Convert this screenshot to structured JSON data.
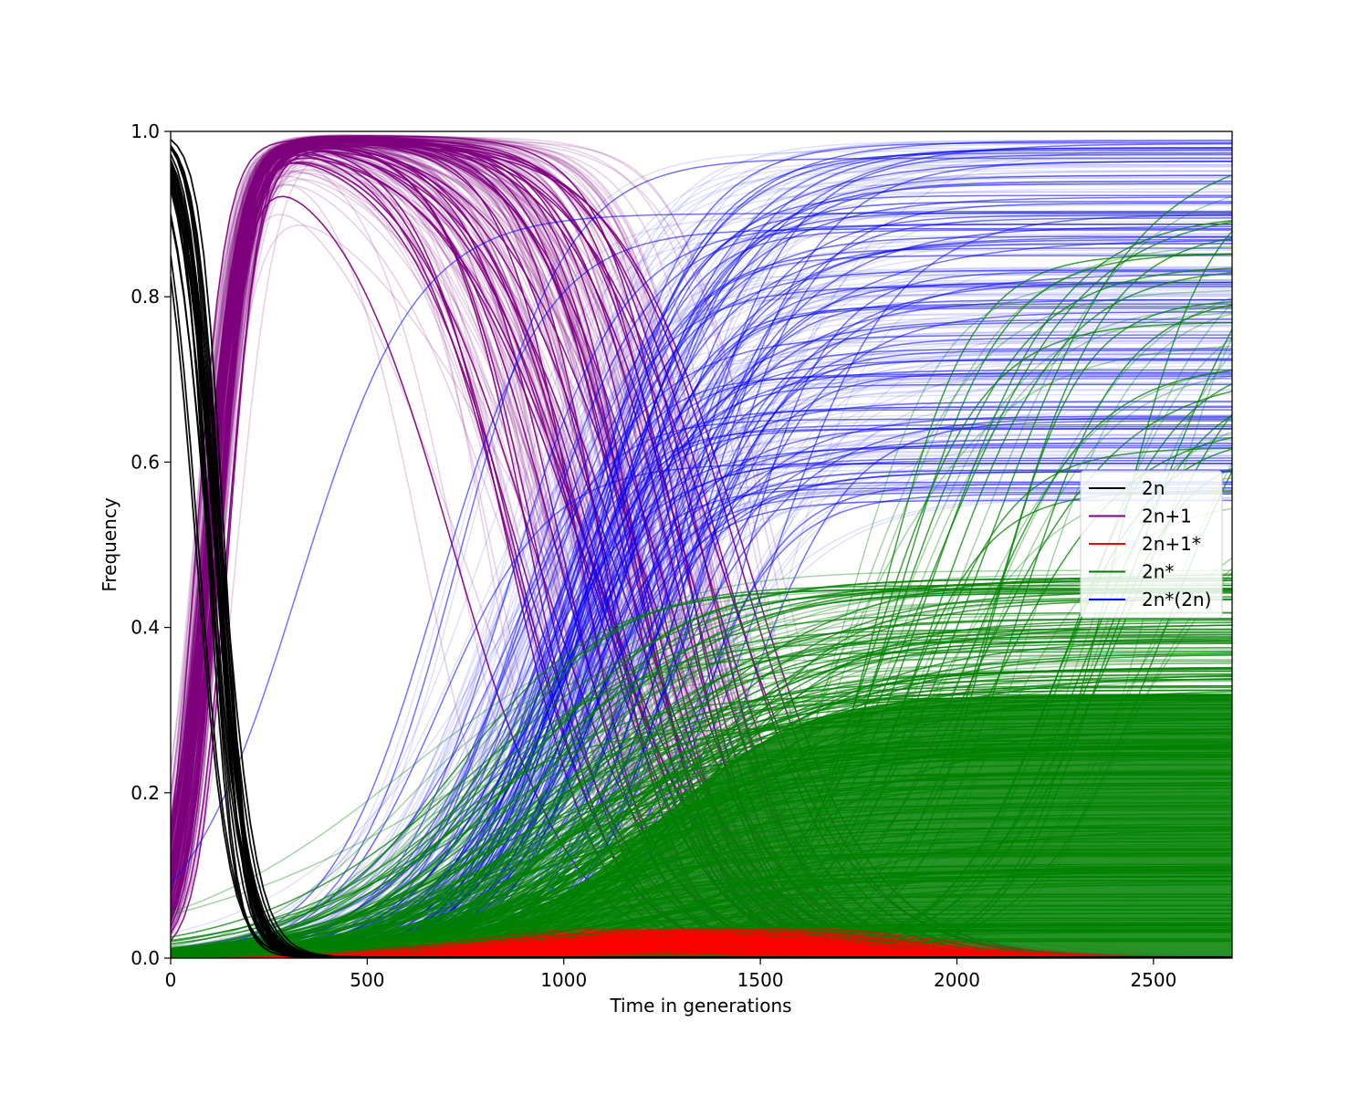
{
  "chart_data": {
    "type": "line",
    "title": "",
    "xlabel": "Time in generations",
    "ylabel": "Frequency",
    "xlim": [
      0,
      2700
    ],
    "ylim": [
      0,
      1.0
    ],
    "xticks": [
      0,
      500,
      1000,
      1500,
      2000,
      2500
    ],
    "yticks": [
      0.0,
      0.2,
      0.4,
      0.6,
      0.8,
      1.0
    ],
    "xtick_labels": [
      "0",
      "500",
      "1000",
      "1500",
      "2000",
      "2500"
    ],
    "ytick_labels": [
      "0.0",
      "0.2",
      "0.4",
      "0.6",
      "0.8",
      "1.0"
    ],
    "grid": false,
    "legend_position": "center-right",
    "series": [
      {
        "name": "2n",
        "color": "#000000",
        "description_points": [
          [
            0,
            1.0
          ],
          [
            50,
            0.9
          ],
          [
            100,
            0.6
          ],
          [
            150,
            0.3
          ],
          [
            200,
            0.12
          ],
          [
            260,
            0.03
          ],
          [
            320,
            0.005
          ],
          [
            380,
            0.0
          ]
        ]
      },
      {
        "name": "2n+1",
        "color": "#800080",
        "description_points": [
          [
            0,
            0.0
          ],
          [
            100,
            0.55
          ],
          [
            200,
            0.9
          ],
          [
            300,
            0.98
          ],
          [
            400,
            0.99
          ],
          [
            600,
            0.95
          ],
          [
            800,
            0.82
          ],
          [
            1000,
            0.62
          ],
          [
            1100,
            0.5
          ],
          [
            1300,
            0.25
          ],
          [
            1500,
            0.08
          ],
          [
            1700,
            0.02
          ],
          [
            2000,
            0.0
          ]
        ]
      },
      {
        "name": "2n+1*",
        "color": "#ff0000",
        "description_points": [
          [
            0,
            0.0
          ],
          [
            500,
            0.005
          ],
          [
            1000,
            0.015
          ],
          [
            1300,
            0.02
          ],
          [
            1600,
            0.015
          ],
          [
            2000,
            0.008
          ],
          [
            2500,
            0.004
          ],
          [
            2700,
            0.003
          ]
        ]
      },
      {
        "name": "2n*",
        "color": "#008000",
        "description_points": [
          [
            0,
            0.0
          ],
          [
            500,
            0.01
          ],
          [
            800,
            0.04
          ],
          [
            1000,
            0.08
          ],
          [
            1300,
            0.15
          ],
          [
            1600,
            0.2
          ],
          [
            2000,
            0.22
          ],
          [
            2500,
            0.2
          ],
          [
            2700,
            0.2
          ]
        ]
      },
      {
        "name": "2n*(2n)",
        "color": "#0000ff",
        "description_points": [
          [
            0,
            0.0
          ],
          [
            300,
            0.01
          ],
          [
            500,
            0.04
          ],
          [
            700,
            0.1
          ],
          [
            900,
            0.25
          ],
          [
            1100,
            0.5
          ],
          [
            1300,
            0.66
          ],
          [
            1500,
            0.73
          ],
          [
            1800,
            0.77
          ],
          [
            2200,
            0.78
          ],
          [
            2700,
            0.78
          ]
        ]
      }
    ]
  }
}
